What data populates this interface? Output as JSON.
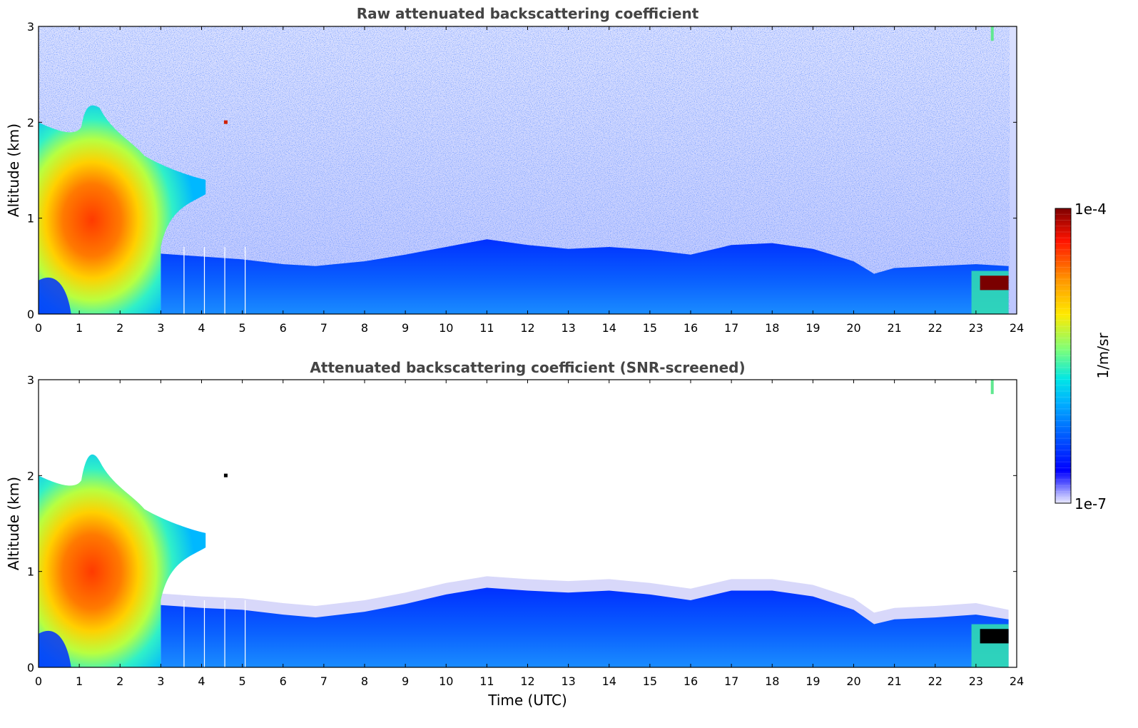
{
  "chart_data": [
    {
      "type": "heatmap",
      "title": "Raw attenuated backscattering coefficient",
      "xlabel": "",
      "ylabel": "Altitude (km)",
      "xlim": [
        0,
        24
      ],
      "ylim": [
        0,
        3
      ],
      "xticks": [
        "0",
        "1",
        "2",
        "3",
        "4",
        "5",
        "6",
        "7",
        "8",
        "9",
        "10",
        "11",
        "12",
        "13",
        "14",
        "15",
        "16",
        "17",
        "18",
        "19",
        "20",
        "21",
        "22",
        "23",
        "24"
      ],
      "yticks": [
        "0",
        "1",
        "2",
        "3"
      ],
      "colormap": "jet",
      "color_scale": "log",
      "noise_above_boundary_layer": true,
      "features": {
        "morning_aerosol_layer": {
          "time_range_h": [
            0,
            3
          ],
          "altitude_peak_km": [
            0.7,
            1.4
          ],
          "max_top_km": 2.2
        },
        "residual_layer": {
          "time_range_h": [
            3,
            4.1
          ],
          "top_km": 1.4
        },
        "boundary_layer_top_km": [
          [
            3,
            0.63
          ],
          [
            4,
            0.6
          ],
          [
            5,
            0.57
          ],
          [
            6,
            0.52
          ],
          [
            6.8,
            0.5
          ],
          [
            8,
            0.55
          ],
          [
            9,
            0.62
          ],
          [
            10,
            0.7
          ],
          [
            11,
            0.78
          ],
          [
            12,
            0.72
          ],
          [
            13,
            0.68
          ],
          [
            14,
            0.7
          ],
          [
            15,
            0.67
          ],
          [
            16,
            0.62
          ],
          [
            17,
            0.72
          ],
          [
            18,
            0.74
          ],
          [
            19,
            0.68
          ],
          [
            20,
            0.55
          ],
          [
            20.5,
            0.42
          ],
          [
            21,
            0.48
          ],
          [
            22,
            0.5
          ],
          [
            23,
            0.52
          ]
        ],
        "low_cloud": {
          "time_range_h": [
            23.1,
            23.8
          ],
          "altitude_km": [
            0.25,
            0.4
          ]
        },
        "high_feature": {
          "time_h": 23.4,
          "altitude_km": [
            2.85,
            3.0
          ]
        }
      }
    },
    {
      "type": "heatmap",
      "title": "Attenuated backscattering coefficient (SNR-screened)",
      "xlabel": "Time (UTC)",
      "ylabel": "Altitude (km)",
      "xlim": [
        0,
        24
      ],
      "ylim": [
        0,
        3
      ],
      "xticks": [
        "0",
        "1",
        "2",
        "3",
        "4",
        "5",
        "6",
        "7",
        "8",
        "9",
        "10",
        "11",
        "12",
        "13",
        "14",
        "15",
        "16",
        "17",
        "18",
        "19",
        "20",
        "21",
        "22",
        "23",
        "24"
      ],
      "yticks": [
        "0",
        "1",
        "2",
        "3"
      ],
      "colormap": "jet",
      "color_scale": "log",
      "noise_above_boundary_layer": false,
      "features": {
        "morning_aerosol_layer": {
          "time_range_h": [
            0,
            3
          ],
          "altitude_peak_km": [
            0.7,
            1.4
          ],
          "max_top_km": 2.3
        },
        "residual_layer": {
          "time_range_h": [
            3,
            4.1
          ],
          "top_km": 1.4
        },
        "boundary_layer_top_km": [
          [
            3,
            0.65
          ],
          [
            4,
            0.62
          ],
          [
            5,
            0.6
          ],
          [
            6,
            0.55
          ],
          [
            6.8,
            0.52
          ],
          [
            8,
            0.58
          ],
          [
            9,
            0.66
          ],
          [
            10,
            0.76
          ],
          [
            11,
            0.83
          ],
          [
            12,
            0.8
          ],
          [
            13,
            0.78
          ],
          [
            14,
            0.8
          ],
          [
            15,
            0.76
          ],
          [
            16,
            0.7
          ],
          [
            17,
            0.8
          ],
          [
            18,
            0.8
          ],
          [
            19,
            0.74
          ],
          [
            20,
            0.6
          ],
          [
            20.5,
            0.45
          ],
          [
            21,
            0.5
          ],
          [
            22,
            0.52
          ],
          [
            23,
            0.55
          ]
        ],
        "low_cloud": {
          "time_range_h": [
            23.1,
            23.8
          ],
          "altitude_km": [
            0.25,
            0.4
          ]
        },
        "high_feature": {
          "time_h": 23.4,
          "altitude_km": [
            2.85,
            3.0
          ]
        }
      }
    }
  ],
  "colorbar": {
    "label": "1/m/sr",
    "max_label": "1e-4",
    "min_label": "1e-7",
    "colormap": "jet",
    "scale": "log"
  },
  "colors": {
    "title": "#444444",
    "axis": "#000000",
    "cloud_dark_red": "#7a0000",
    "cloud_black": "#000000"
  }
}
